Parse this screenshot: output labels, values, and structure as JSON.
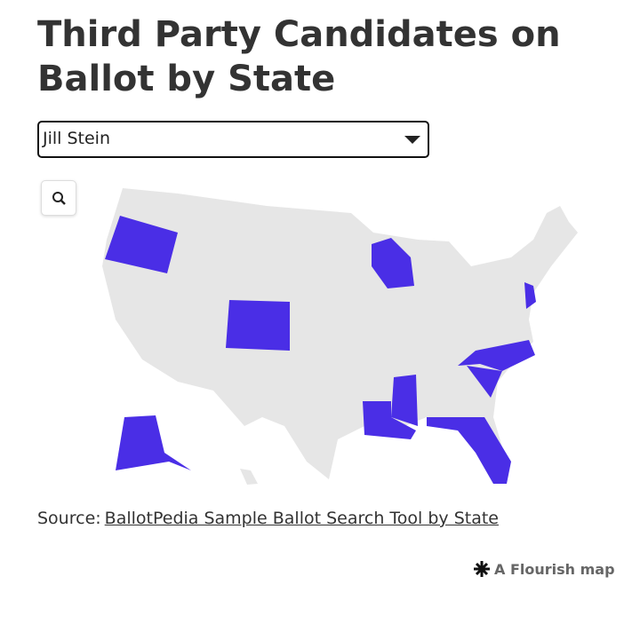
{
  "header": {
    "title_line1": "Third Party Candidates on",
    "title_line2": "Ballot by State"
  },
  "dropdown": {
    "selected": "Jill Stein"
  },
  "source": {
    "prefix": "Source:",
    "link": "BallotPedia Sample Ballot Search Tool by State"
  },
  "credit": "A Flourish map"
}
